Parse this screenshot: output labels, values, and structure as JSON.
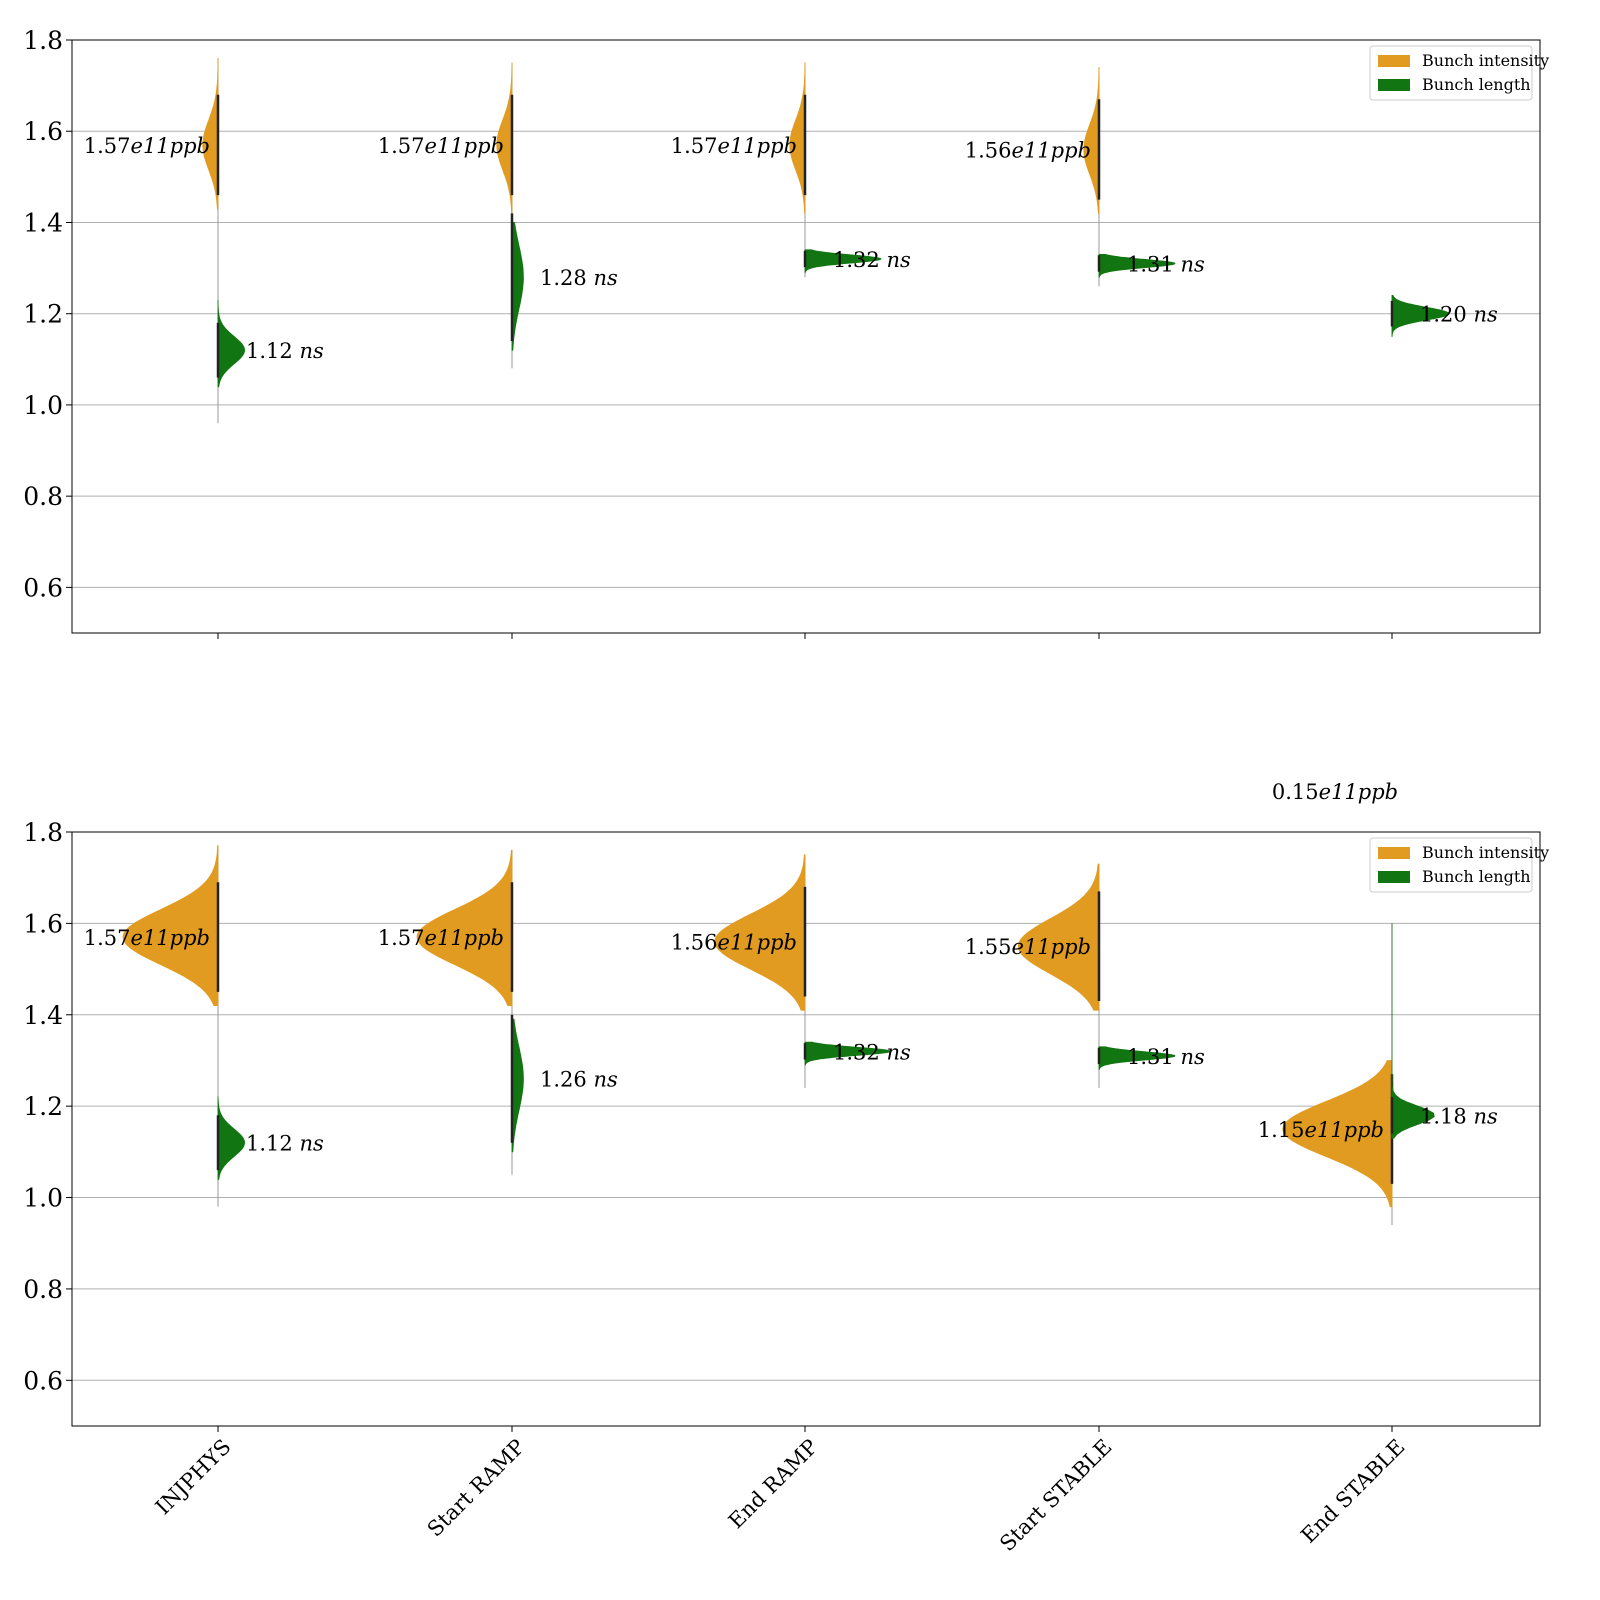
{
  "chart_data": [
    {
      "type": "violin",
      "categories": [
        "INJPHYS",
        "Start RAMP",
        "End RAMP",
        "Start STABLE",
        "End STABLE"
      ],
      "ylim": [
        0.5,
        1.8
      ],
      "yticks": [
        "0.6",
        "0.8",
        "1.0",
        "1.2",
        "1.4",
        "1.6",
        "1.8"
      ],
      "show_category_labels": false,
      "grid": true,
      "legend_position": "top-right",
      "colors": {
        "intensity": "#e09b20",
        "length": "#117611"
      },
      "legend": [
        "Bunch intensity",
        "Bunch length"
      ],
      "series": [
        {
          "name": "Bunch intensity",
          "side": "left",
          "values": [
            1.57,
            1.57,
            1.57,
            1.56,
            null
          ],
          "spread": [
            0.055,
            0.055,
            0.055,
            0.055,
            0
          ],
          "width": [
            0.16,
            0.16,
            0.16,
            0.16,
            0
          ],
          "range": [
            [
              1.43,
              1.76
            ],
            [
              1.42,
              1.75
            ],
            [
              1.42,
              1.75
            ],
            [
              1.42,
              1.74
            ],
            null
          ],
          "tail": [
            0.96,
            1.08,
            1.28,
            1.26,
            null
          ],
          "labels": [
            "1.57e11ppb",
            "1.57e11ppb",
            "1.57e11ppb",
            "1.56e11ppb",
            ""
          ]
        },
        {
          "name": "Bunch length",
          "side": "right",
          "values": [
            1.12,
            1.28,
            1.32,
            1.31,
            1.2
          ],
          "spread": [
            0.03,
            0.07,
            0.009,
            0.009,
            0.014
          ],
          "width": [
            0.28,
            0.12,
            0.8,
            0.8,
            0.6
          ],
          "range": [
            [
              1.04,
              1.23
            ],
            [
              1.12,
              1.4
            ],
            [
              1.29,
              1.34
            ],
            [
              1.28,
              1.33
            ],
            [
              1.15,
              1.24
            ]
          ],
          "labels": [
            "1.12 ns",
            "1.28 ns",
            "1.32 ns",
            "1.31 ns",
            "1.20 ns"
          ]
        }
      ]
    },
    {
      "type": "violin",
      "categories": [
        "INJPHYS",
        "Start RAMP",
        "End RAMP",
        "Start STABLE",
        "End STABLE"
      ],
      "ylim": [
        0.5,
        1.8
      ],
      "yticks": [
        "0.6",
        "0.8",
        "1.0",
        "1.2",
        "1.4",
        "1.6",
        "1.8"
      ],
      "show_category_labels": true,
      "grid": true,
      "legend_position": "top-right",
      "colors": {
        "intensity": "#e09b20",
        "length": "#117611"
      },
      "legend": [
        "Bunch intensity",
        "Bunch length"
      ],
      "outside_label": "0.15e11ppb",
      "series": [
        {
          "name": "Bunch intensity",
          "side": "left",
          "values": [
            1.57,
            1.57,
            1.56,
            1.55,
            1.15
          ],
          "spread": [
            0.06,
            0.06,
            0.06,
            0.06,
            0.06
          ],
          "width": [
            1.0,
            1.0,
            0.95,
            0.85,
            1.15
          ],
          "range": [
            [
              1.42,
              1.77
            ],
            [
              1.42,
              1.76
            ],
            [
              1.41,
              1.75
            ],
            [
              1.41,
              1.73
            ],
            [
              0.98,
              1.3
            ]
          ],
          "tail": [
            0.98,
            1.05,
            1.24,
            1.24,
            0.94
          ],
          "labels": [
            "1.57e11ppb",
            "1.57e11ppb",
            "1.56e11ppb",
            "1.55e11ppb",
            "1.15e11ppb"
          ]
        },
        {
          "name": "Bunch length",
          "side": "right",
          "values": [
            1.12,
            1.26,
            1.32,
            1.31,
            1.18
          ],
          "spread": [
            0.03,
            0.07,
            0.009,
            0.009,
            0.02
          ],
          "width": [
            0.28,
            0.12,
            0.9,
            0.8,
            0.45
          ],
          "range": [
            [
              1.04,
              1.22
            ],
            [
              1.1,
              1.39
            ],
            [
              1.29,
              1.34
            ],
            [
              1.28,
              1.33
            ],
            [
              1.13,
              1.6
            ]
          ],
          "labels": [
            "1.12 ns",
            "1.26 ns",
            "1.32 ns",
            "1.31 ns",
            "1.18 ns"
          ]
        }
      ]
    }
  ]
}
